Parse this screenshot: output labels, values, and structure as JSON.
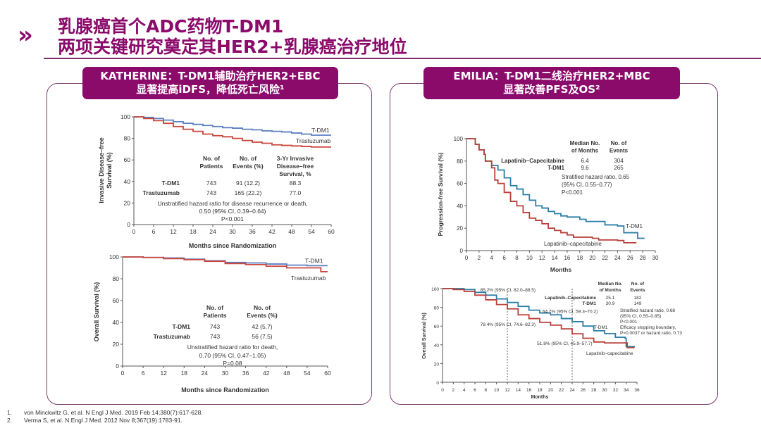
{
  "header": {
    "icon": "double-chevron-right-icon",
    "title_line1": "乳腺癌首个ADC药物T-DM1",
    "title_line2": "两项关键研究奠定其HER2+乳腺癌治疗地位"
  },
  "left_panel": {
    "banner_line1": "KATHERINE：T-DM1辅助治疗HER2+EBC",
    "banner_line2": "显著提高iDFS，降低死亡风险¹"
  },
  "right_panel": {
    "banner_line1": "EMILIA：T-DM1二线治疗HER2+MBC",
    "banner_line2": "显著改善PFS及OS²"
  },
  "colors": {
    "brand": "#8b0b6b",
    "tdm1_katherine": "#5b7fc2",
    "trastuzumab": "#c9473d",
    "tdm1_emilia": "#2a7fa8",
    "lapatinib": "#b8403a"
  },
  "references": [
    {
      "num": "1.",
      "text": "von Minckwitz G, et al. N Engl J Med. 2019  Feb 14;380(7):617-628."
    },
    {
      "num": "2.",
      "text": "Verma S, et al. N Engl J Med. 2012  Nov 8;367(19):1783-91."
    }
  ],
  "chart_data": [
    {
      "id": "katherine-idfs",
      "type": "line",
      "title": "",
      "xlabel": "Months since Randomization",
      "ylabel_line1": "Invasive Disease–free",
      "ylabel_line2": "Survival (%)",
      "xlim": [
        0,
        60
      ],
      "ylim": [
        0,
        100
      ],
      "xticks": [
        0,
        6,
        12,
        18,
        24,
        30,
        36,
        42,
        48,
        54,
        60
      ],
      "yticks": [
        0,
        20,
        40,
        60,
        80,
        100
      ],
      "series": [
        {
          "name": "T-DM1",
          "color": "#5b7fc2",
          "points": [
            [
              0,
              100
            ],
            [
              3,
              99.5
            ],
            [
              6,
              98.5
            ],
            [
              9,
              97
            ],
            [
              12,
              95.5
            ],
            [
              15,
              94
            ],
            [
              18,
              93
            ],
            [
              21,
              92
            ],
            [
              24,
              91
            ],
            [
              27,
              90
            ],
            [
              30,
              89.5
            ],
            [
              33,
              88.5
            ],
            [
              36,
              88
            ],
            [
              39,
              87
            ],
            [
              42,
              86.5
            ],
            [
              45,
              86
            ],
            [
              48,
              85
            ],
            [
              51,
              84
            ],
            [
              54,
              83
            ],
            [
              57,
              83
            ],
            [
              60,
              83
            ]
          ]
        },
        {
          "name": "Trastuzumab",
          "color": "#c9473d",
          "points": [
            [
              0,
              100
            ],
            [
              3,
              98.5
            ],
            [
              6,
              96.5
            ],
            [
              9,
              94
            ],
            [
              12,
              91
            ],
            [
              15,
              88.5
            ],
            [
              18,
              86.5
            ],
            [
              21,
              84
            ],
            [
              24,
              82.5
            ],
            [
              27,
              81.5
            ],
            [
              30,
              80
            ],
            [
              33,
              78
            ],
            [
              36,
              76.5
            ],
            [
              39,
              75.5
            ],
            [
              42,
              74
            ],
            [
              45,
              73.5
            ],
            [
              48,
              73
            ],
            [
              51,
              72.5
            ],
            [
              54,
              72
            ],
            [
              57,
              72
            ],
            [
              60,
              72
            ]
          ]
        }
      ],
      "annotations": {
        "col_headers": [
          [
            "No. of",
            "Patients"
          ],
          [
            "No. of",
            "Events (%)"
          ],
          [
            "3-Yr Invasive",
            "Disease–free",
            "Survival, %"
          ]
        ],
        "rows": [
          {
            "label": "T-DM1",
            "patients": "743",
            "events": "91 (12.2)",
            "survival": "88.3"
          },
          {
            "label": "Trastuzumab",
            "patients": "743",
            "events": "165 (22.2)",
            "survival": "77.0"
          }
        ],
        "hr_lines": [
          "Unstratified hazard ratio for disease recurrence or death,",
          "0.50 (95% CI, 0.39–0.64)",
          "P<0.001"
        ]
      }
    },
    {
      "id": "katherine-os",
      "type": "line",
      "title": "",
      "xlabel": "Months since Randomization",
      "ylabel_line1": "Overall Survival (%)",
      "xlim": [
        0,
        60
      ],
      "ylim": [
        0,
        100
      ],
      "xticks": [
        0,
        6,
        12,
        18,
        24,
        30,
        36,
        42,
        48,
        54,
        60
      ],
      "yticks": [
        0,
        20,
        40,
        60,
        80,
        100
      ],
      "series": [
        {
          "name": "T-DM1",
          "color": "#5b7fc2",
          "points": [
            [
              0,
              100
            ],
            [
              6,
              99.5
            ],
            [
              12,
              99
            ],
            [
              18,
              98
            ],
            [
              24,
              96.5
            ],
            [
              30,
              95
            ],
            [
              36,
              94.5
            ],
            [
              42,
              93.5
            ],
            [
              48,
              92.5
            ],
            [
              54,
              92
            ],
            [
              60,
              92
            ]
          ]
        },
        {
          "name": "Trastuzumab",
          "color": "#c9473d",
          "points": [
            [
              0,
              100
            ],
            [
              6,
              99.5
            ],
            [
              12,
              98.5
            ],
            [
              18,
              97.5
            ],
            [
              24,
              96
            ],
            [
              30,
              94
            ],
            [
              36,
              93
            ],
            [
              42,
              91.5
            ],
            [
              48,
              90
            ],
            [
              54,
              90
            ],
            [
              58,
              86.5
            ],
            [
              60,
              86.5
            ]
          ]
        }
      ],
      "annotations": {
        "col_headers": [
          [
            "No. of",
            "Patients"
          ],
          [
            "No. of",
            "Events (%)"
          ]
        ],
        "rows": [
          {
            "label": "T-DM1",
            "patients": "743",
            "events": "42 (5.7)"
          },
          {
            "label": "Trastuzumab",
            "patients": "743",
            "events": "56 (7.5)"
          }
        ],
        "hr_lines": [
          "Unstratified hazard ratio for death,",
          "0.70 (95% CI, 0.47–1.05)",
          "P=0.08"
        ]
      }
    },
    {
      "id": "emilia-pfs",
      "type": "line",
      "title": "",
      "xlabel": "Months",
      "ylabel_line1": "Progression-free Survival (%)",
      "xlim": [
        0,
        30
      ],
      "ylim": [
        0,
        100
      ],
      "xticks": [
        0,
        2,
        4,
        6,
        8,
        10,
        12,
        14,
        16,
        18,
        20,
        22,
        24,
        26,
        28,
        30
      ],
      "yticks": [
        0,
        20,
        40,
        60,
        80,
        100
      ],
      "series": [
        {
          "name": "T-DM1",
          "label": "T-DM1",
          "color": "#2a7fa8",
          "points": [
            [
              0,
              100
            ],
            [
              1,
              100
            ],
            [
              1.4,
              95
            ],
            [
              2,
              90
            ],
            [
              2.8,
              86
            ],
            [
              3,
              80
            ],
            [
              4,
              76
            ],
            [
              5,
              72
            ],
            [
              6,
              65
            ],
            [
              7,
              58
            ],
            [
              8,
              55
            ],
            [
              9,
              50
            ],
            [
              10,
              45
            ],
            [
              11,
              40
            ],
            [
              12,
              38
            ],
            [
              13,
              35
            ],
            [
              14,
              33
            ],
            [
              15,
              31
            ],
            [
              16,
              30
            ],
            [
              18,
              28
            ],
            [
              19,
              26
            ],
            [
              21,
              26
            ],
            [
              22,
              23
            ],
            [
              24,
              22
            ],
            [
              25,
              16
            ],
            [
              26,
              16
            ],
            [
              27,
              16
            ],
            [
              27.2,
              11
            ],
            [
              28.3,
              11
            ]
          ]
        },
        {
          "name": "Lapatinib–Capecitabine",
          "label": "Lapatinib–capecitabine",
          "color": "#b8403a",
          "points": [
            [
              0,
              100
            ],
            [
              1,
              100
            ],
            [
              1.4,
              95
            ],
            [
              2,
              90
            ],
            [
              2.8,
              86
            ],
            [
              3,
              80
            ],
            [
              4,
              74
            ],
            [
              4.5,
              63
            ],
            [
              5,
              60
            ],
            [
              6,
              52
            ],
            [
              7,
              44
            ],
            [
              8,
              40
            ],
            [
              9,
              34
            ],
            [
              10,
              29
            ],
            [
              11,
              27
            ],
            [
              12,
              24
            ],
            [
              13,
              20
            ],
            [
              14,
              18
            ],
            [
              15,
              16
            ],
            [
              16,
              14
            ],
            [
              17,
              12
            ],
            [
              18,
              12
            ],
            [
              20,
              11
            ],
            [
              21,
              9.5
            ],
            [
              23,
              9.5
            ],
            [
              24,
              9
            ],
            [
              25,
              7
            ],
            [
              27,
              7
            ]
          ]
        }
      ],
      "annotations": {
        "col_headers": [
          [
            "Median No.",
            "of Months"
          ],
          [
            "No. of",
            "Events"
          ]
        ],
        "rows": [
          {
            "label": "Lapatinib–Capecitabine",
            "median": "6.4",
            "events": "304"
          },
          {
            "label": "T-DM1",
            "median": "9.6",
            "events": "265"
          }
        ],
        "hr_lines": [
          "Stratified hazard ratio, 0.65",
          "(95% CI, 0.55–0.77)",
          "P<0.001"
        ]
      }
    },
    {
      "id": "emilia-os",
      "type": "line",
      "title": "",
      "xlabel": "Months",
      "ylabel_line1": "Overall Survival (%)",
      "xlim": [
        0,
        36
      ],
      "ylim": [
        0,
        100
      ],
      "xticks": [
        0,
        2,
        4,
        6,
        8,
        10,
        12,
        14,
        16,
        18,
        20,
        22,
        24,
        26,
        28,
        30,
        32,
        34,
        36
      ],
      "yticks": [
        0,
        20,
        40,
        60,
        80,
        100
      ],
      "series": [
        {
          "name": "T-DM1",
          "label": "T-DM1",
          "color": "#2a7fa8",
          "points": [
            [
              0,
              100
            ],
            [
              2,
              100
            ],
            [
              4,
              99
            ],
            [
              6,
              96
            ],
            [
              8,
              93
            ],
            [
              10,
              89
            ],
            [
              12,
              85.2
            ],
            [
              14,
              81
            ],
            [
              16,
              77
            ],
            [
              18,
              74
            ],
            [
              20,
              72
            ],
            [
              22,
              68
            ],
            [
              24,
              64.7
            ],
            [
              26,
              60
            ],
            [
              28,
              55
            ],
            [
              30,
              52
            ],
            [
              32,
              48
            ],
            [
              33.8,
              47
            ],
            [
              34,
              38
            ],
            [
              35.5,
              37
            ]
          ]
        },
        {
          "name": "Lapatinib–Capecitabine",
          "label": "Lapatinib–capecitabine",
          "color": "#b8403a",
          "points": [
            [
              0,
              100
            ],
            [
              2,
              99
            ],
            [
              4,
              97
            ],
            [
              6,
              93
            ],
            [
              8,
              88
            ],
            [
              10,
              83
            ],
            [
              12,
              78.4
            ],
            [
              14,
              72
            ],
            [
              16,
              68
            ],
            [
              18,
              64
            ],
            [
              20,
              61
            ],
            [
              22,
              57
            ],
            [
              24,
              51.8
            ],
            [
              26,
              47
            ],
            [
              28,
              43
            ],
            [
              30,
              42
            ],
            [
              32,
              42
            ],
            [
              34,
              42
            ],
            [
              34.2,
              37
            ],
            [
              35.5,
              37
            ]
          ]
        }
      ],
      "reference_lines_x": [
        12,
        24
      ],
      "annotations": {
        "col_headers": [
          [
            "Median No.",
            "of Months"
          ],
          [
            "No. of",
            "Events"
          ]
        ],
        "rows": [
          {
            "label": "Lapatinib–Capecitabine",
            "median": "25.1",
            "events": "182"
          },
          {
            "label": "T-DM1",
            "median": "30.9",
            "events": "149"
          }
        ],
        "hr_lines": [
          "Stratified hazard ratio, 0.68",
          "(95% CI, 0.55–0.85)",
          "P<0.001",
          "Efficacy stopping boundary,",
          "P=0.0037 or hazard ratio, 0.73"
        ],
        "point_labels": [
          "85.2% (95% CI, 82.0–88.5)",
          "64.7% (95% CI, 59.3–70.2)",
          "78.4% (95% CI, 74.6–82.3)",
          "51.8% (95% CI, 45.9–57.7)"
        ]
      }
    }
  ]
}
